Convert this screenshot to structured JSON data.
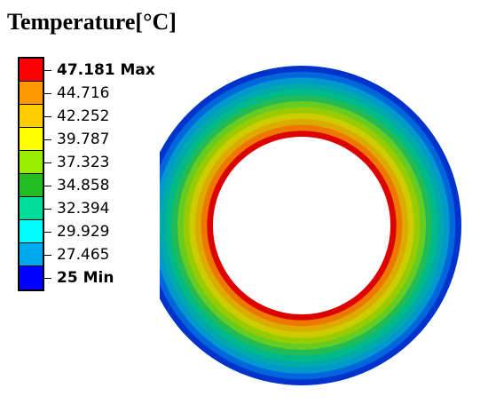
{
  "title": "Temperature[°C]",
  "legend": {
    "levels": [
      {
        "label": "47.181 Max",
        "color": "#ff0000",
        "bold": true
      },
      {
        "label": "44.716",
        "color": "#ff9900",
        "bold": false
      },
      {
        "label": "42.252",
        "color": "#ffcc00",
        "bold": false
      },
      {
        "label": "39.787",
        "color": "#ffff00",
        "bold": false
      },
      {
        "label": "37.323",
        "color": "#99ee00",
        "bold": false
      },
      {
        "label": "34.858",
        "color": "#22bb22",
        "bold": false
      },
      {
        "label": "32.394",
        "color": "#00dd99",
        "bold": false
      },
      {
        "label": "29.929",
        "color": "#00ffff",
        "bold": false
      },
      {
        "label": "27.465",
        "color": "#00aaee",
        "bold": false
      },
      {
        "label": "25 Min",
        "color": "#0000ff",
        "bold": true
      }
    ]
  },
  "contour": {
    "band_colors": [
      "#0033cc",
      "#0066dd",
      "#0099cc",
      "#00aaaa",
      "#00bb88",
      "#22bb55",
      "#66cc22",
      "#99cc00",
      "#cccc00",
      "#ddaa00",
      "#ee7700",
      "#dd0000"
    ],
    "inner_color": "#ffffff"
  }
}
